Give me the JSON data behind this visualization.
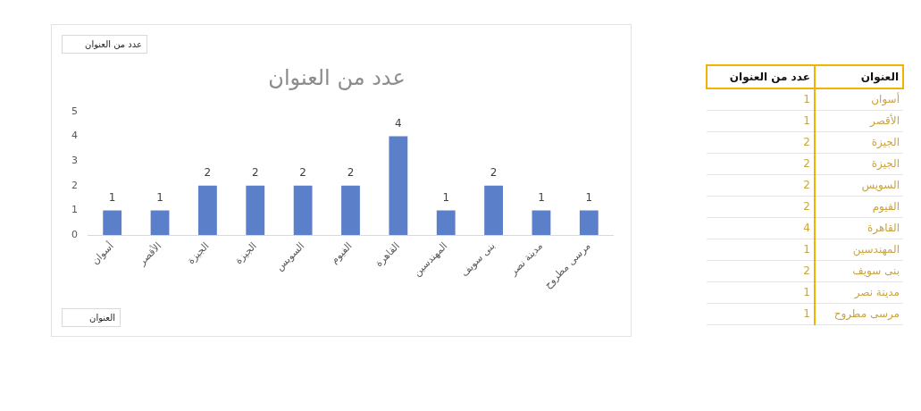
{
  "chart_data": [
    {
      "type": "bar",
      "title": "عدد من العنوان",
      "xlabel": "العنوان",
      "annotations": [
        "عدد من العنوان"
      ],
      "categories": [
        "أسوان",
        "الأقصر",
        "الجيزة",
        "الجيزة",
        "السويس",
        "الفيوم",
        "القاهرة",
        "المهندسين",
        "بنى سويف",
        "مدينة نصر",
        "مرسى مطروح"
      ],
      "values": [
        1,
        1,
        2,
        2,
        2,
        2,
        4,
        1,
        2,
        1,
        1
      ],
      "color": "#5b7fc9",
      "ylim": [
        0,
        5
      ],
      "yticks": [
        0,
        1,
        2,
        3,
        4,
        5
      ],
      "grid": false,
      "legend": false,
      "data_labels": true
    },
    {
      "type": "other",
      "annotations": [
        "العنوان",
        "عدد من العنوان"
      ],
      "categories": [
        "أسوان",
        "الأقصر",
        "الجيزة",
        "الجيزة",
        "السويس",
        "الفيوم",
        "القاهرة",
        "المهندسين",
        "بنى سويف",
        "مدينة نصر",
        "مرسى مطروح"
      ],
      "values": [
        1,
        1,
        2,
        2,
        2,
        2,
        4,
        1,
        2,
        1,
        1
      ],
      "data_labels": true
    }
  ]
}
